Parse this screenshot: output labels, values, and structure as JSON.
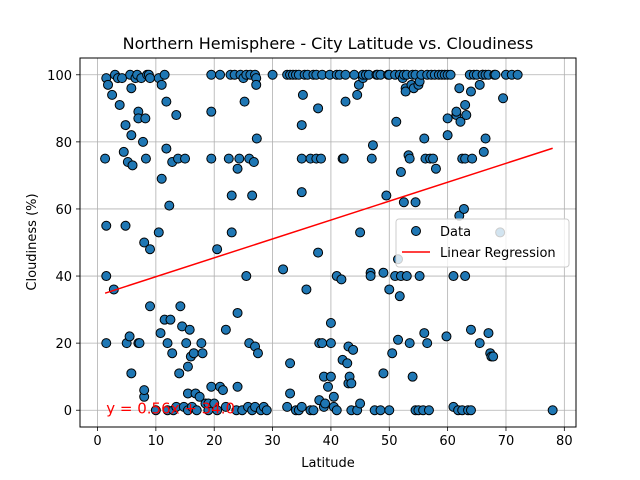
{
  "chart_data": {
    "type": "scatter",
    "title": "Northern Hemisphere - City Latitude vs. Cloudiness",
    "xlabel": "Latitude",
    "ylabel": "Cloudiness (%)",
    "xlim": [
      -3,
      82
    ],
    "ylim": [
      -5,
      105
    ],
    "xticks": [
      0,
      10,
      20,
      30,
      40,
      50,
      60,
      70,
      80
    ],
    "yticks": [
      0,
      20,
      40,
      60,
      80,
      100
    ],
    "grid": true,
    "legend_position": "right",
    "series": [
      {
        "name": "Data",
        "color": "#1f77b4",
        "points": [
          [
            1.3,
            75
          ],
          [
            1.5,
            99
          ],
          [
            1.5,
            20
          ],
          [
            1.5,
            40
          ],
          [
            1.5,
            55
          ],
          [
            1.8,
            97
          ],
          [
            2.5,
            94
          ],
          [
            2.8,
            36
          ],
          [
            3,
            100
          ],
          [
            3.5,
            99
          ],
          [
            3.8,
            91
          ],
          [
            4.2,
            99
          ],
          [
            4.5,
            77
          ],
          [
            4.8,
            85
          ],
          [
            4.8,
            55
          ],
          [
            5,
            20
          ],
          [
            5.2,
            74
          ],
          [
            5.5,
            22
          ],
          [
            5.6,
            100
          ],
          [
            5.8,
            96
          ],
          [
            5.8,
            82
          ],
          [
            5.8,
            11
          ],
          [
            6,
            73
          ],
          [
            6.5,
            99
          ],
          [
            6.8,
            100
          ],
          [
            7,
            89
          ],
          [
            7,
            87
          ],
          [
            7,
            20
          ],
          [
            7.2,
            20
          ],
          [
            7.5,
            99
          ],
          [
            7.8,
            80
          ],
          [
            8,
            4
          ],
          [
            8,
            6
          ],
          [
            8,
            50
          ],
          [
            8.2,
            87
          ],
          [
            8.3,
            75
          ],
          [
            8.5,
            100
          ],
          [
            8.8,
            100
          ],
          [
            9,
            99
          ],
          [
            9,
            48
          ],
          [
            9,
            31
          ],
          [
            10,
            0
          ],
          [
            10.5,
            99
          ],
          [
            10.5,
            53
          ],
          [
            10.8,
            23
          ],
          [
            11,
            69
          ],
          [
            11,
            97
          ],
          [
            11.5,
            100
          ],
          [
            11.5,
            27
          ],
          [
            11.8,
            92
          ],
          [
            11.8,
            78
          ],
          [
            12,
            20
          ],
          [
            12,
            0
          ],
          [
            12.3,
            61
          ],
          [
            12.5,
            27
          ],
          [
            12.8,
            74
          ],
          [
            12.8,
            17
          ],
          [
            13,
            0
          ],
          [
            13.5,
            88
          ],
          [
            13.5,
            1
          ],
          [
            13.8,
            75
          ],
          [
            14,
            11
          ],
          [
            14.2,
            31
          ],
          [
            14.5,
            25
          ],
          [
            14.8,
            1
          ],
          [
            15,
            75
          ],
          [
            15.2,
            20
          ],
          [
            15.5,
            5
          ],
          [
            15.5,
            0
          ],
          [
            15.5,
            13
          ],
          [
            15.8,
            24
          ],
          [
            16,
            16
          ],
          [
            16.2,
            1
          ],
          [
            16.5,
            17
          ],
          [
            16.8,
            5
          ],
          [
            17,
            0
          ],
          [
            17.5,
            4
          ],
          [
            17.8,
            20
          ],
          [
            18,
            17
          ],
          [
            18.5,
            2
          ],
          [
            19,
            0
          ],
          [
            19,
            2
          ],
          [
            19.5,
            100
          ],
          [
            19.5,
            89
          ],
          [
            19.5,
            75
          ],
          [
            19.5,
            7
          ],
          [
            20,
            2
          ],
          [
            20.5,
            48
          ],
          [
            20.5,
            0
          ],
          [
            21,
            100
          ],
          [
            21,
            7
          ],
          [
            21.5,
            6
          ],
          [
            22,
            24
          ],
          [
            22,
            1
          ],
          [
            22.5,
            75
          ],
          [
            22.8,
            100
          ],
          [
            23,
            64
          ],
          [
            23,
            53
          ],
          [
            23.5,
            100
          ],
          [
            23.8,
            0
          ],
          [
            24,
            72
          ],
          [
            24,
            29
          ],
          [
            24,
            7
          ],
          [
            24.3,
            75
          ],
          [
            24.5,
            100
          ],
          [
            24.8,
            0
          ],
          [
            25,
            99
          ],
          [
            25.2,
            92
          ],
          [
            25.5,
            40
          ],
          [
            25.5,
            100
          ],
          [
            25.8,
            1
          ],
          [
            26,
            75
          ],
          [
            26,
            20
          ],
          [
            26.2,
            100
          ],
          [
            26.5,
            0
          ],
          [
            26.5,
            64
          ],
          [
            26.8,
            74
          ],
          [
            27,
            1
          ],
          [
            27,
            19
          ],
          [
            27,
            100
          ],
          [
            27.2,
            99
          ],
          [
            27.2,
            97
          ],
          [
            27.3,
            81
          ],
          [
            27.5,
            17
          ],
          [
            28,
            0
          ],
          [
            28.5,
            1
          ],
          [
            29,
            0
          ],
          [
            30,
            100
          ],
          [
            31.8,
            42
          ],
          [
            32.5,
            1
          ],
          [
            32.5,
            100
          ],
          [
            33,
            100
          ],
          [
            33,
            5
          ],
          [
            33,
            14
          ],
          [
            33.5,
            100
          ],
          [
            34,
            100
          ],
          [
            34,
            0
          ],
          [
            34.5,
            100
          ],
          [
            34.5,
            0
          ],
          [
            35,
            85
          ],
          [
            35,
            65
          ],
          [
            35,
            75
          ],
          [
            35,
            1
          ],
          [
            35.2,
            94
          ],
          [
            35.5,
            100
          ],
          [
            35.8,
            36
          ],
          [
            36,
            100
          ],
          [
            36.5,
            75
          ],
          [
            36.5,
            0
          ],
          [
            37,
            100
          ],
          [
            37,
            0
          ],
          [
            37.5,
            100
          ],
          [
            37.5,
            75
          ],
          [
            37.8,
            90
          ],
          [
            37.8,
            47
          ],
          [
            38,
            20
          ],
          [
            38,
            3
          ],
          [
            38.3,
            75
          ],
          [
            38.5,
            100
          ],
          [
            38.5,
            20
          ],
          [
            38.8,
            1
          ],
          [
            38.8,
            10
          ],
          [
            39,
            2
          ],
          [
            39.5,
            7
          ],
          [
            39.8,
            100
          ],
          [
            40,
            26
          ],
          [
            40,
            20
          ],
          [
            40,
            10
          ],
          [
            40.5,
            1
          ],
          [
            40.5,
            4
          ],
          [
            41,
            100
          ],
          [
            41,
            40
          ],
          [
            41,
            0
          ],
          [
            41.5,
            100
          ],
          [
            41.8,
            39
          ],
          [
            42,
            75
          ],
          [
            42,
            15
          ],
          [
            42.2,
            75
          ],
          [
            42.5,
            100
          ],
          [
            42.5,
            92
          ],
          [
            42.8,
            14
          ],
          [
            43,
            19
          ],
          [
            43,
            8
          ],
          [
            43.2,
            10
          ],
          [
            43.5,
            0
          ],
          [
            43.5,
            8
          ],
          [
            43.8,
            18
          ],
          [
            44,
            100
          ],
          [
            44.5,
            94
          ],
          [
            44.5,
            0
          ],
          [
            44.8,
            97
          ],
          [
            45,
            53
          ],
          [
            45,
            2
          ],
          [
            45.5,
            99
          ],
          [
            45.5,
            100
          ],
          [
            46,
            100
          ],
          [
            46.5,
            100
          ],
          [
            46.8,
            41
          ],
          [
            46.8,
            40
          ],
          [
            47,
            75
          ],
          [
            47.2,
            79
          ],
          [
            47.5,
            0
          ],
          [
            47.8,
            100
          ],
          [
            48,
            100
          ],
          [
            48.5,
            0
          ],
          [
            48.5,
            100
          ],
          [
            49,
            11
          ],
          [
            49,
            41
          ],
          [
            49.5,
            64
          ],
          [
            49.8,
            100
          ],
          [
            50,
            100
          ],
          [
            50,
            0
          ],
          [
            50,
            36
          ],
          [
            50.5,
            17
          ],
          [
            51,
            100
          ],
          [
            51,
            40
          ],
          [
            51.2,
            86
          ],
          [
            51.5,
            45
          ],
          [
            51.5,
            21
          ],
          [
            51.8,
            100
          ],
          [
            51.8,
            34
          ],
          [
            52,
            71
          ],
          [
            52,
            40
          ],
          [
            52.3,
            99
          ],
          [
            52.5,
            62
          ],
          [
            52.5,
            100
          ],
          [
            52.8,
            96
          ],
          [
            52.8,
            95
          ],
          [
            53,
            40
          ],
          [
            53,
            100
          ],
          [
            53.3,
            76
          ],
          [
            53.5,
            75
          ],
          [
            53.5,
            20
          ],
          [
            53.8,
            97
          ],
          [
            54,
            10
          ],
          [
            54,
            100
          ],
          [
            54.2,
            96
          ],
          [
            54.5,
            100
          ],
          [
            54.5,
            0
          ],
          [
            54.5,
            62
          ],
          [
            55,
            0
          ],
          [
            55,
            97
          ],
          [
            55.2,
            98
          ],
          [
            55.2,
            40
          ],
          [
            55.5,
            100
          ],
          [
            55.8,
            0
          ],
          [
            56,
            81
          ],
          [
            56,
            23
          ],
          [
            56.2,
            75
          ],
          [
            56.5,
            100
          ],
          [
            56.5,
            20
          ],
          [
            56.8,
            0
          ],
          [
            57,
            75
          ],
          [
            57.2,
            100
          ],
          [
            57.5,
            75
          ],
          [
            57.8,
            100
          ],
          [
            58,
            72
          ],
          [
            58.5,
            100
          ],
          [
            59,
            100
          ],
          [
            59.5,
            100
          ],
          [
            59.8,
            22
          ],
          [
            60,
            82
          ],
          [
            60,
            87
          ],
          [
            60,
            100
          ],
          [
            60.5,
            100
          ],
          [
            61,
            1
          ],
          [
            61,
            40
          ],
          [
            61.5,
            88
          ],
          [
            61.5,
            89
          ],
          [
            61.8,
            0
          ],
          [
            62,
            58
          ],
          [
            62,
            96
          ],
          [
            62.2,
            86
          ],
          [
            62.5,
            75
          ],
          [
            62.5,
            0
          ],
          [
            62.8,
            60
          ],
          [
            63,
            91
          ],
          [
            63,
            75
          ],
          [
            63,
            40
          ],
          [
            63.2,
            88
          ],
          [
            63.5,
            0
          ],
          [
            63.8,
            100
          ],
          [
            64,
            95
          ],
          [
            64,
            0
          ],
          [
            64,
            24
          ],
          [
            64.2,
            75
          ],
          [
            64.5,
            100
          ],
          [
            65,
            100
          ],
          [
            65.5,
            20
          ],
          [
            65.5,
            97
          ],
          [
            66,
            100
          ],
          [
            66,
            100
          ],
          [
            66.2,
            77
          ],
          [
            66.5,
            81
          ],
          [
            66.5,
            100
          ],
          [
            67,
            100
          ],
          [
            67,
            23
          ],
          [
            67.3,
            17
          ],
          [
            67.5,
            16
          ],
          [
            67.8,
            16
          ],
          [
            68,
            100
          ],
          [
            68.2,
            100
          ],
          [
            69,
            53
          ],
          [
            69.5,
            93
          ],
          [
            70,
            100
          ],
          [
            71,
            100
          ],
          [
            72,
            100
          ],
          [
            78,
            0
          ]
        ]
      },
      {
        "name": "Linear Regression",
        "color": "#ff0000",
        "line": [
          [
            1.3,
            34.9
          ],
          [
            78,
            78.1
          ]
        ]
      }
    ],
    "annotation": {
      "text": "y = 0.56x + 34.0",
      "x": 1.5,
      "y": -1,
      "color": "#ff0000"
    }
  }
}
